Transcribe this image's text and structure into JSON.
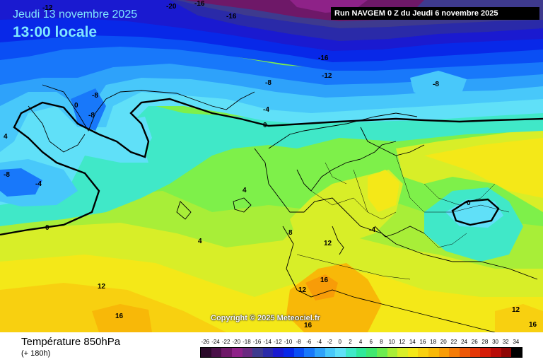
{
  "header": {
    "date": "Jeudi 13 novembre 2025",
    "time": "13:00 locale",
    "run": "Run NAVGEM 0 Z du Jeudi 6 novembre 2025"
  },
  "copyright": "Copyright © 2025 Meteociel.fr",
  "legend": {
    "title": "Température 850hPa",
    "subtitle": "(+ 180h)",
    "ticks": [
      "-26",
      "-24",
      "-22",
      "-20",
      "-18",
      "-16",
      "-14",
      "-12",
      "-10",
      "-8",
      "-6",
      "-4",
      "-2",
      "0",
      "2",
      "4",
      "6",
      "8",
      "10",
      "12",
      "14",
      "16",
      "18",
      "20",
      "22",
      "24",
      "26",
      "28",
      "30",
      "32",
      "34"
    ],
    "colors": [
      "#2b0a2a",
      "#4a1048",
      "#6e1868",
      "#8e2288",
      "#6a2a80",
      "#3e3a8e",
      "#2a2aa8",
      "#1a1ad0",
      "#0828e8",
      "#0a4ef4",
      "#1878fa",
      "#2ea2fa",
      "#48c8fa",
      "#60e0f8",
      "#40e8c8",
      "#30e89a",
      "#40e870",
      "#6cec50",
      "#a8ee38",
      "#d8ee28",
      "#f4e818",
      "#f8d010",
      "#f8b808",
      "#f89c08",
      "#f47c08",
      "#ec5808",
      "#e43808",
      "#d41c08",
      "#b80c08",
      "#8e0604",
      "#000000"
    ]
  },
  "contour_labels": [
    "-16",
    "-12",
    "-20",
    "-16",
    "-8",
    "-12",
    "-16",
    "-8",
    "-8",
    "-12",
    "-8",
    "0",
    "-8",
    "-4",
    "0",
    "4",
    "-8",
    "-4",
    "4",
    "0",
    "0",
    "4",
    "8",
    "-4",
    "12",
    "4",
    "12",
    "12",
    "16",
    "16",
    "12",
    "16",
    "16",
    "12"
  ]
}
